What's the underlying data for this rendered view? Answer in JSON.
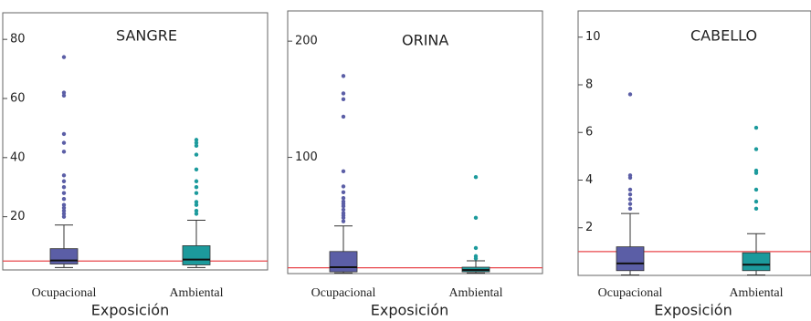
{
  "chart_data": [
    {
      "type": "box",
      "title": "SANGRE",
      "categories": [
        "Ocupacional",
        "Ambiental"
      ],
      "xlabel": "Exposición",
      "ylim": [
        2,
        89
      ],
      "yticks": [
        20,
        40,
        60,
        80
      ],
      "reference_line": {
        "value": 5,
        "color": "#e8474c"
      },
      "boxes": [
        {
          "color": "#5b5ea6",
          "whislo": 2.8,
          "q1": 4,
          "med": 5.2,
          "q3": 9.2,
          "whishi": 17.2,
          "fliers": [
            20,
            21,
            22,
            23,
            24,
            26,
            28,
            30,
            32,
            34,
            42,
            45,
            48,
            61,
            62,
            74
          ]
        },
        {
          "color": "#1c9a9c",
          "whislo": 2.8,
          "q1": 3.7,
          "med": 5.5,
          "q3": 10.2,
          "whishi": 18.8,
          "fliers": [
            21,
            22,
            24,
            25,
            28,
            30,
            32,
            36,
            41,
            44,
            45,
            46
          ]
        }
      ]
    },
    {
      "type": "box",
      "title": "ORINA",
      "categories": [
        "Ocupacional",
        "Ambiental"
      ],
      "xlabel": "Exposición",
      "ylim": [
        0,
        226
      ],
      "yticks": [
        100,
        200
      ],
      "reference_line": {
        "value": 5,
        "color": "#e8474c"
      },
      "boxes": [
        {
          "color": "#5b5ea6",
          "whislo": 0.5,
          "q1": 1.5,
          "med": 5.5,
          "q3": 19,
          "whishi": 41,
          "fliers": [
            45,
            48,
            50,
            52,
            55,
            58,
            60,
            62,
            65,
            70,
            75,
            88,
            135,
            150,
            155,
            170
          ]
        },
        {
          "color": "#1c9a9c",
          "whislo": 0.5,
          "q1": 1.5,
          "med": 3,
          "q3": 5.5,
          "whishi": 11,
          "fliers": [
            13,
            15,
            22,
            48,
            83
          ]
        }
      ]
    },
    {
      "type": "box",
      "title": "CABELLO",
      "categories": [
        "Ocupacional",
        "Ambiental"
      ],
      "xlabel": "Exposición",
      "ylim": [
        0,
        11.1
      ],
      "yticks": [
        2,
        4,
        6,
        8,
        10
      ],
      "reference_line": {
        "value": 1,
        "color": "#e8474c"
      },
      "boxes": [
        {
          "color": "#5b5ea6",
          "whislo": 0.02,
          "q1": 0.2,
          "med": 0.5,
          "q3": 1.2,
          "whishi": 2.6,
          "fliers": [
            2.8,
            3,
            3.2,
            3.4,
            3.6,
            4.1,
            4.2,
            7.6
          ]
        },
        {
          "color": "#1c9a9c",
          "whislo": 0.02,
          "q1": 0.2,
          "med": 0.45,
          "q3": 0.95,
          "whishi": 1.75,
          "fliers": [
            2.8,
            3.1,
            3.6,
            4.3,
            4.4,
            5.3,
            6.2
          ]
        }
      ]
    }
  ]
}
